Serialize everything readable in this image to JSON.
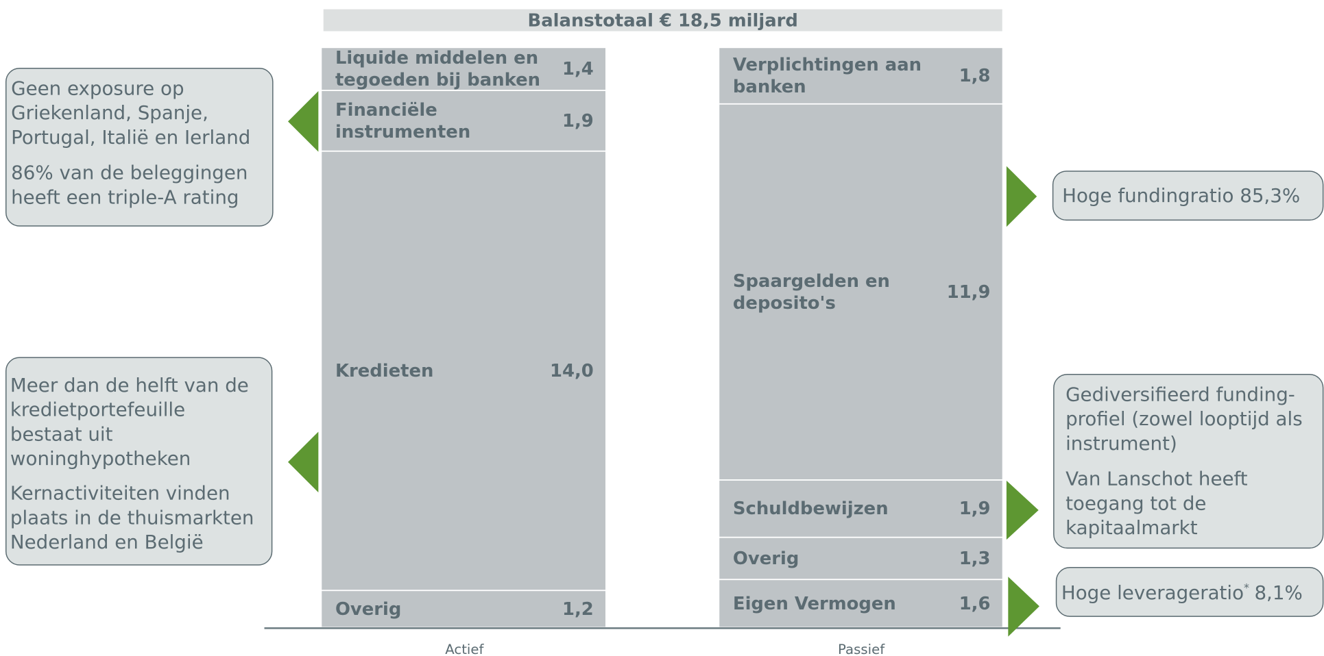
{
  "title": "Balanstotaal € 18,5 miljard",
  "assets": {
    "label": "Actief",
    "items": [
      {
        "name": [
          "Liquide middelen en",
          "tegoeden bij banken"
        ],
        "value": "1,4"
      },
      {
        "name": [
          "Financiële",
          "instrumenten"
        ],
        "value": "1,9"
      },
      {
        "name": [
          "Kredieten"
        ],
        "value": "14,0"
      },
      {
        "name": [
          "Overig"
        ],
        "value": "1,2"
      }
    ]
  },
  "liabilities": {
    "label": "Passief",
    "items": [
      {
        "name": [
          "Verplichtingen aan",
          "banken"
        ],
        "value": "1,8"
      },
      {
        "name": [
          "Spaargelden en",
          "deposito's"
        ],
        "value": "11,9"
      },
      {
        "name": [
          "Schuldbewijzen"
        ],
        "value": "1,9"
      },
      {
        "name": [
          "Overig"
        ],
        "value": "1,3"
      },
      {
        "name": [
          "Eigen Vermogen"
        ],
        "value": "1,6"
      }
    ]
  },
  "callouts": [
    {
      "paragraphs": [
        [
          "Geen exposure op",
          "Griekenland, Spanje,",
          "Portugal, Italië en Ierland"
        ],
        [
          "86% van de beleggingen",
          "heeft een triple-A rating"
        ]
      ]
    },
    {
      "paragraphs": [
        [
          "Meer dan de helft van de",
          "kredietportefeuille",
          "bestaat uit",
          "woninghypotheken"
        ],
        [
          "Kernactiviteiten vinden",
          "plaats in de thuismarkten",
          "Nederland en België"
        ]
      ]
    },
    {
      "paragraphs": [
        [
          "Hoge fundingratio 85,3%"
        ]
      ]
    },
    {
      "paragraphs": [
        [
          "Gediversifieerd funding-",
          "profiel (zowel looptijd als",
          "instrument)"
        ],
        [
          "Van Lanschot heeft",
          "toegang tot de",
          "kapitaalmarkt"
        ]
      ]
    }
  ],
  "leverage_callout": {
    "text": "Hoge leverageratio",
    "footnote_mark": "*",
    "value": "8,1%"
  }
}
